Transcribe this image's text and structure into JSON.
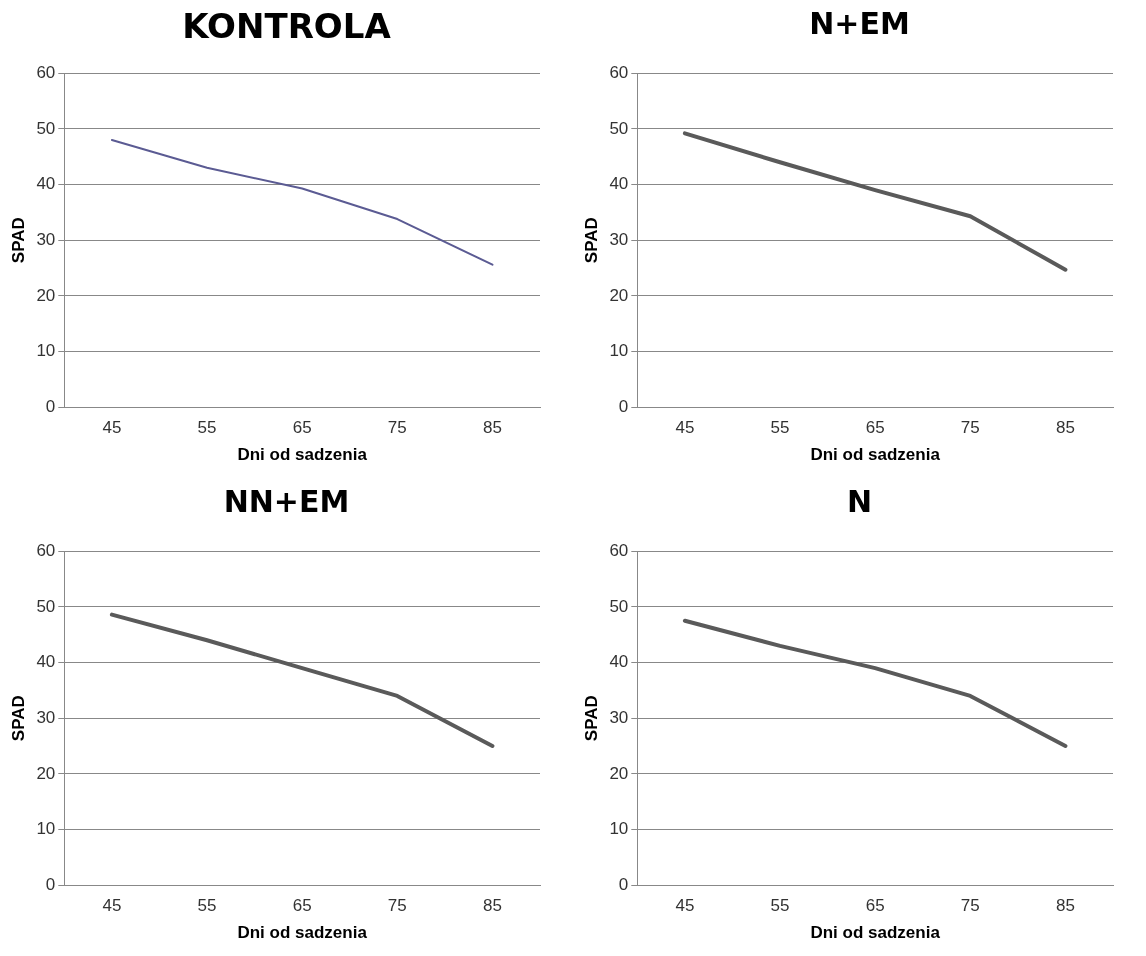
{
  "chart_data": [
    {
      "type": "line",
      "title": "KONTROLA",
      "xlabel": "Dni od sadzenia",
      "ylabel": "SPAD",
      "categories": [
        "45",
        "55",
        "65",
        "75",
        "85"
      ],
      "series": [
        {
          "color": "#5b5b93",
          "values": [
            48,
            43,
            39.3,
            33.8,
            25.6
          ]
        }
      ],
      "ylim": [
        0,
        60
      ],
      "yticks": [
        0,
        10,
        20,
        30,
        40,
        50,
        60
      ],
      "grid": "y",
      "marker": "none"
    },
    {
      "type": "line",
      "title": "N+EM",
      "xlabel": "Dni od sadzenia",
      "ylabel": "SPAD",
      "categories": [
        "45",
        "55",
        "65",
        "75",
        "85"
      ],
      "series": [
        {
          "color": "#5a5a5a",
          "values": [
            49.2,
            44,
            39,
            34.3,
            24.7
          ]
        }
      ],
      "ylim": [
        0,
        60
      ],
      "yticks": [
        0,
        10,
        20,
        30,
        40,
        50,
        60
      ],
      "grid": "y",
      "marker": "none"
    },
    {
      "type": "line",
      "title": "NN+EM",
      "xlabel": "Dni od sadzenia",
      "ylabel": "SPAD",
      "categories": [
        "45",
        "55",
        "65",
        "75",
        "85"
      ],
      "series": [
        {
          "color": "#5a5a5a",
          "values": [
            48.6,
            44,
            39,
            34,
            25
          ]
        }
      ],
      "ylim": [
        0,
        60
      ],
      "yticks": [
        0,
        10,
        20,
        30,
        40,
        50,
        60
      ],
      "grid": "y",
      "marker": "none"
    },
    {
      "type": "line",
      "title": "N",
      "xlabel": "Dni od sadzenia",
      "ylabel": "SPAD",
      "categories": [
        "45",
        "55",
        "65",
        "75",
        "85"
      ],
      "series": [
        {
          "color": "#5a5a5a",
          "values": [
            47.5,
            43,
            39,
            34,
            25
          ]
        }
      ],
      "ylim": [
        0,
        60
      ],
      "yticks": [
        0,
        10,
        20,
        30,
        40,
        50,
        60
      ],
      "grid": "y",
      "marker": "none"
    }
  ]
}
